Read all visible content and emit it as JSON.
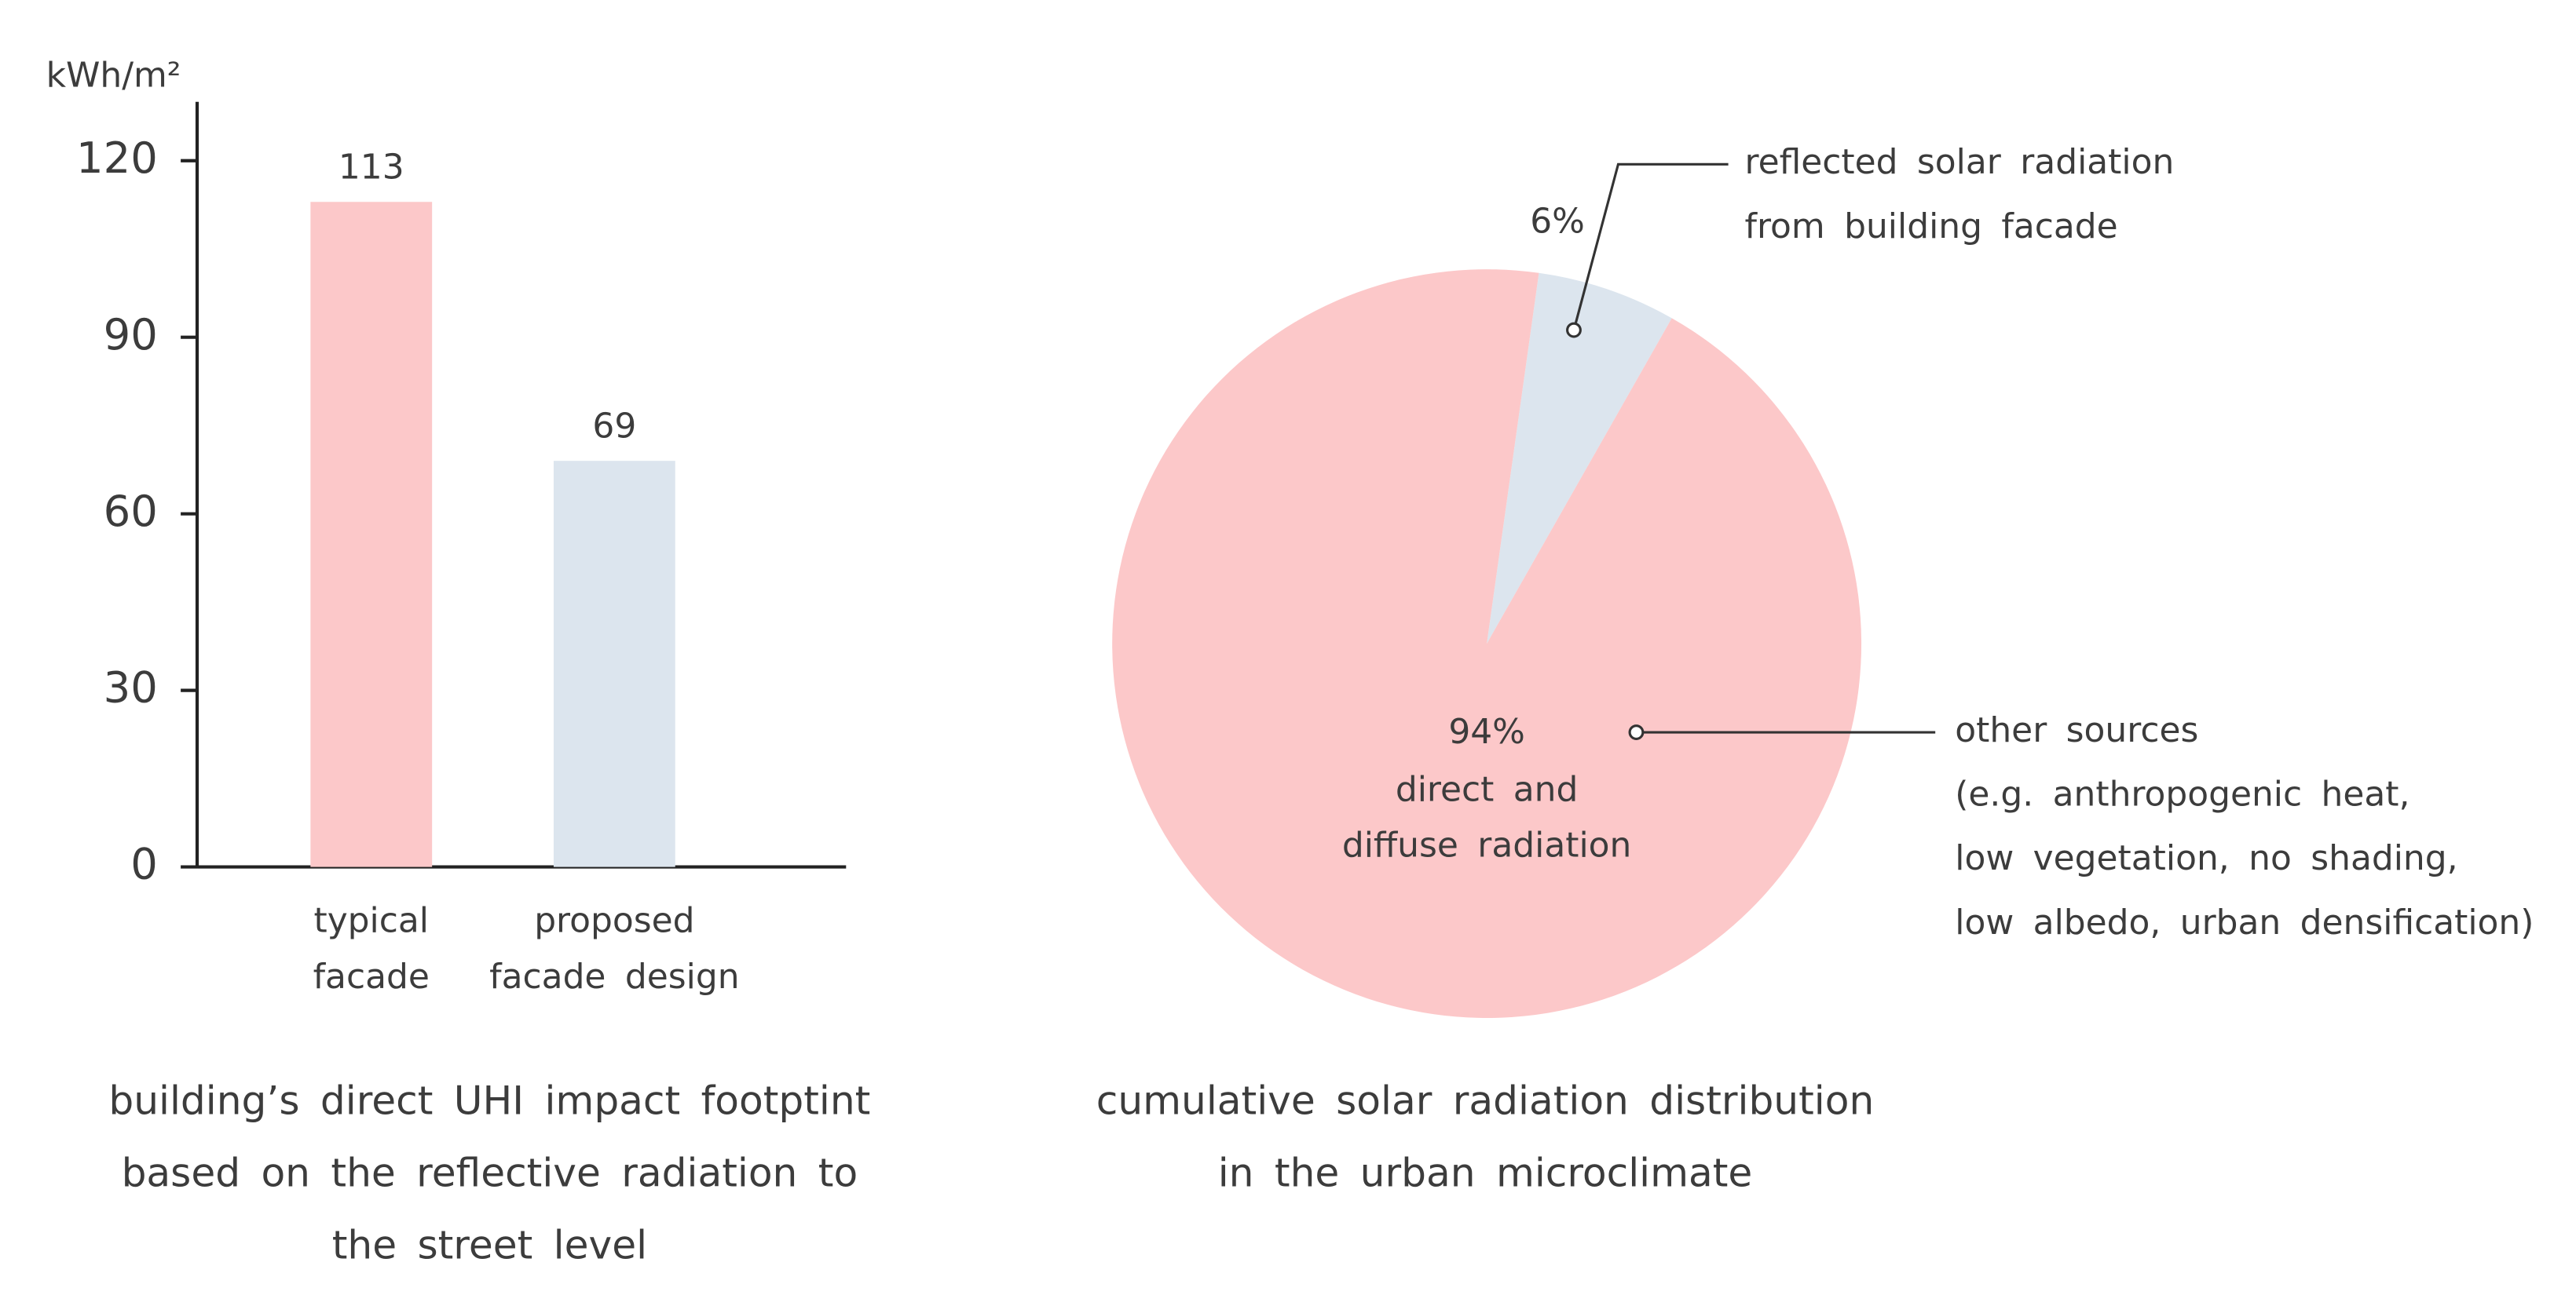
{
  "chart_data": [
    {
      "type": "bar",
      "title": [
        "building’s direct UHI impact footptint",
        "based on the reflective radiation to",
        "the street level"
      ],
      "y_label": "kWh/m²",
      "categories": [
        [
          "typical",
          "facade"
        ],
        [
          "proposed",
          "facade design"
        ]
      ],
      "values": [
        113,
        69
      ],
      "colors": [
        "#fcc8c9",
        "#dce5ee"
      ],
      "ylim": [
        0,
        130
      ],
      "yticks": [
        0,
        30,
        60,
        90,
        120
      ],
      "grid": false
    },
    {
      "type": "pie",
      "title": [
        "cumulative solar radiation distribution",
        "in the urban microclimate"
      ],
      "values": [
        94,
        6
      ],
      "value_labels": [
        "94%",
        "6%"
      ],
      "colors": [
        "#fcc8c9",
        "#dce5ee"
      ],
      "inner_labels": [
        [
          "direct and",
          "diffuse radiation"
        ],
        null
      ],
      "callouts": [
        [
          "other sources",
          "(e.g. anthropogenic heat,",
          "low vegetation, no shading,",
          "low albedo, urban densification)"
        ],
        [
          "reflected solar radiation",
          "from building facade"
        ]
      ]
    }
  ]
}
